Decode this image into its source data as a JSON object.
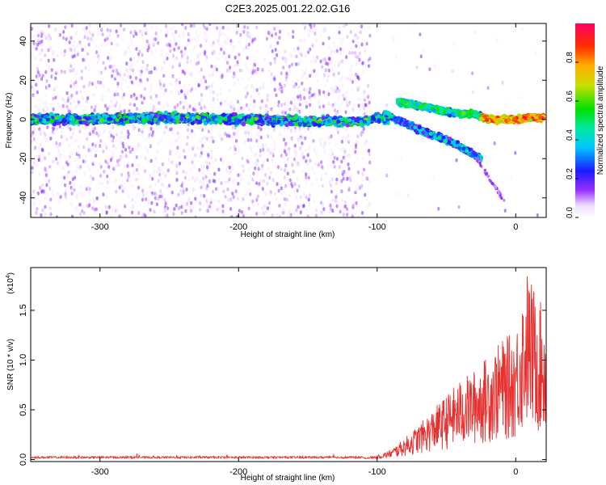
{
  "figure": {
    "title": "C2E3.2025.001.22.02.G16"
  },
  "chart_data": [
    {
      "type": "heatmap",
      "title": "C2E3.2025.001.22.02.G16",
      "xlabel": "Height of straight line (km)",
      "ylabel": "Frequency (Hz)",
      "xlim": [
        -350,
        22
      ],
      "ylim": [
        -50,
        49
      ],
      "xticks": [
        -300,
        -200,
        -100,
        0
      ],
      "yticks": [
        -40,
        -20,
        0,
        20,
        40
      ],
      "colorbar": {
        "label": "Normalized spectral amplitude",
        "range": [
          0.0,
          1.0
        ],
        "ticks": [
          "0.0",
          "0.2",
          "0.4",
          "0.6",
          "0.8"
        ],
        "colormap": "rainbow (white-violet-blue-cyan-green-yellow-red)"
      },
      "ridges": [
        {
          "x": [
            -350,
            -300,
            -250,
            -200,
            -150,
            -110,
            -100,
            -92
          ],
          "y": [
            0,
            0,
            1,
            0,
            -1,
            -1,
            1,
            -1
          ]
        },
        {
          "x": [
            -85,
            -70,
            -50,
            -40,
            -30,
            -20,
            -10,
            0,
            10,
            20
          ],
          "y": [
            9,
            7,
            4,
            3,
            3,
            0,
            0,
            0,
            1,
            1
          ]
        },
        {
          "x": [
            -95,
            -80,
            -60,
            -45,
            -35,
            -25
          ],
          "y": [
            3,
            -2,
            -8,
            -12,
            -16,
            -20
          ]
        }
      ]
    },
    {
      "type": "line",
      "xlabel": "Height of straight line (km)",
      "ylabel": "SNR (10 * v/v)",
      "scale_label": "(x10",
      "scale_exponent": "4",
      "xlim": [
        -350,
        22
      ],
      "ylim": [
        -0.02,
        1.93
      ],
      "xticks": [
        -300,
        -200,
        -100,
        0
      ],
      "yticks": [
        "0.0",
        "0.5",
        "1.0",
        "1.5"
      ],
      "color": "#e8302f",
      "envelope": [
        {
          "x": -350,
          "y": 0.02
        },
        {
          "x": -110,
          "y": 0.02
        },
        {
          "x": -100,
          "y": 0.04
        },
        {
          "x": -90,
          "y": 0.1
        },
        {
          "x": -80,
          "y": 0.22
        },
        {
          "x": -70,
          "y": 0.35
        },
        {
          "x": -60,
          "y": 0.5
        },
        {
          "x": -50,
          "y": 0.65
        },
        {
          "x": -40,
          "y": 0.8
        },
        {
          "x": -30,
          "y": 0.9
        },
        {
          "x": -20,
          "y": 1.05
        },
        {
          "x": -10,
          "y": 1.2
        },
        {
          "x": 0,
          "y": 1.3
        },
        {
          "x": 8,
          "y": 1.92
        },
        {
          "x": 22,
          "y": 1.45
        }
      ]
    }
  ]
}
